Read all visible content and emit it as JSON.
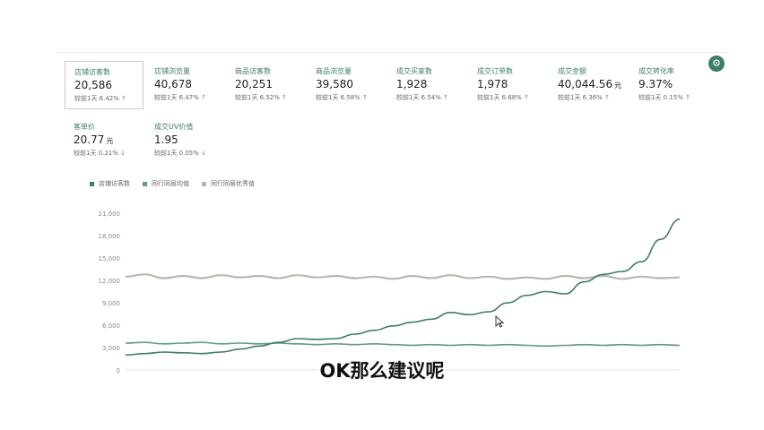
{
  "metrics": [
    {
      "label": "店铺访客数",
      "value": "20,586",
      "unit": "",
      "cmp": "较前1天 6.42%",
      "dir": "up"
    },
    {
      "label": "店铺浏览量",
      "value": "40,678",
      "unit": "",
      "cmp": "较前1天 6.47%",
      "dir": "up"
    },
    {
      "label": "商品访客数",
      "value": "20,251",
      "unit": "",
      "cmp": "较前1天 6.52%",
      "dir": "up"
    },
    {
      "label": "商品浏览量",
      "value": "39,580",
      "unit": "",
      "cmp": "较前1天 6.58%",
      "dir": "up"
    },
    {
      "label": "成交买家数",
      "value": "1,928",
      "unit": "",
      "cmp": "较前1天 6.54%",
      "dir": "up"
    },
    {
      "label": "成交订单数",
      "value": "1,978",
      "unit": "",
      "cmp": "较前1天 6.68%",
      "dir": "up"
    },
    {
      "label": "成交金额",
      "value": "40,044.56",
      "unit": "元",
      "cmp": "较前1天 6.36%",
      "dir": "up"
    },
    {
      "label": "成交转化率",
      "value": "9.37%",
      "unit": "",
      "cmp": "较前1天 0.15%",
      "dir": "up"
    },
    {
      "label": "客单价",
      "value": "20.77",
      "unit": "元",
      "cmp": "较前1天 0.21%",
      "dir": "down"
    },
    {
      "label": "成交UV价值",
      "value": "1.95",
      "unit": "",
      "cmp": "较前1天 0.05%",
      "dir": "down"
    }
  ],
  "arrows": {
    "up": "↑",
    "down": "↓"
  },
  "settings_icon": "⚙",
  "chart_data": {
    "type": "line",
    "title": "",
    "xlabel": "",
    "ylabel": "",
    "ylim": [
      0,
      21000
    ],
    "yticks": [
      "0",
      "3,000",
      "6,000",
      "9,000",
      "12,000",
      "15,000",
      "18,000",
      "21,000"
    ],
    "x": [
      0,
      1,
      2,
      3,
      4,
      5,
      6,
      7,
      8,
      9,
      10,
      11,
      12,
      13,
      14,
      15,
      16,
      17,
      18,
      19,
      20,
      21,
      22,
      23,
      24,
      25,
      26,
      27,
      28,
      29
    ],
    "grid": false,
    "legend_position": "top-left",
    "series": [
      {
        "name": "店铺访客数",
        "color": "#3f7c6c",
        "values": [
          2000,
          2200,
          2400,
          2300,
          2200,
          2400,
          2800,
          3200,
          3700,
          4200,
          4100,
          4200,
          4800,
          5300,
          5900,
          6400,
          6800,
          7700,
          7400,
          7800,
          9000,
          10000,
          10500,
          10200,
          11800,
          12800,
          13200,
          14500,
          17500,
          20200
        ]
      },
      {
        "name": "同行同层均值",
        "color": "#5f9a8a",
        "values": [
          3600,
          3700,
          3500,
          3600,
          3700,
          3500,
          3600,
          3500,
          3600,
          3500,
          3400,
          3500,
          3400,
          3500,
          3400,
          3300,
          3400,
          3300,
          3400,
          3300,
          3400,
          3300,
          3200,
          3300,
          3400,
          3300,
          3400,
          3300,
          3400,
          3300
        ]
      },
      {
        "name": "同行同层优秀值",
        "color": "#b8b8b0",
        "values": [
          12500,
          12800,
          12300,
          12600,
          12300,
          12700,
          12400,
          12600,
          12300,
          12700,
          12400,
          12600,
          12300,
          12500,
          12200,
          12600,
          12300,
          12700,
          12300,
          12500,
          12200,
          12400,
          12200,
          12600,
          12300,
          12600,
          12200,
          12500,
          12300,
          12400
        ]
      }
    ]
  },
  "subtitle": "OK那么建议呢"
}
